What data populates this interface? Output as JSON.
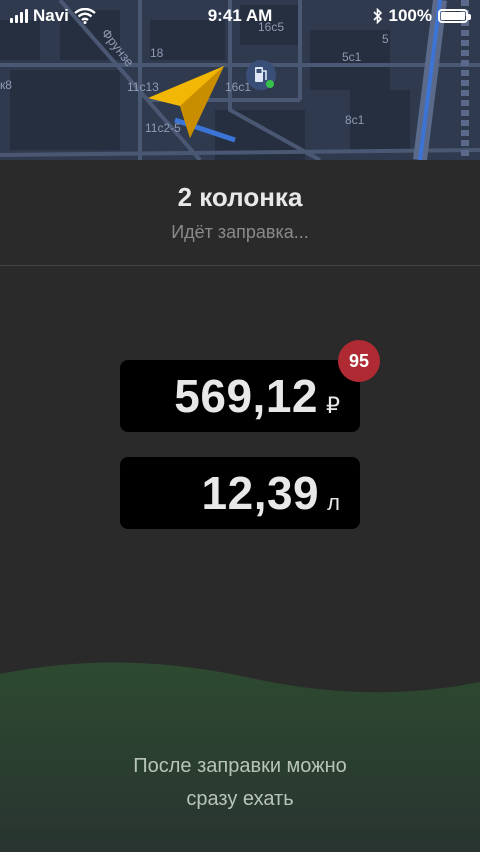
{
  "status_bar": {
    "carrier": "Navi",
    "time": "9:41 AM",
    "battery": "100%"
  },
  "map": {
    "labels": [
      "18",
      "16c5",
      "5c1",
      "5",
      "11c13",
      "16c1",
      "к8",
      "8c1",
      "11c2-5"
    ],
    "street": "Фрунзе"
  },
  "header": {
    "title": "2 колонка",
    "status": "Идёт заправка..."
  },
  "price": {
    "value": "569,12",
    "unit": "₽"
  },
  "volume": {
    "value": "12,39",
    "unit": "л"
  },
  "fuel_badge": "95",
  "hint": {
    "line1": "После заправки можно",
    "line2": "сразу ехать"
  },
  "colors": {
    "background": "#2a2a2a",
    "badge": "#b02a33",
    "wave": "#2d4a30",
    "navigator_arrow": "#f2b705"
  }
}
